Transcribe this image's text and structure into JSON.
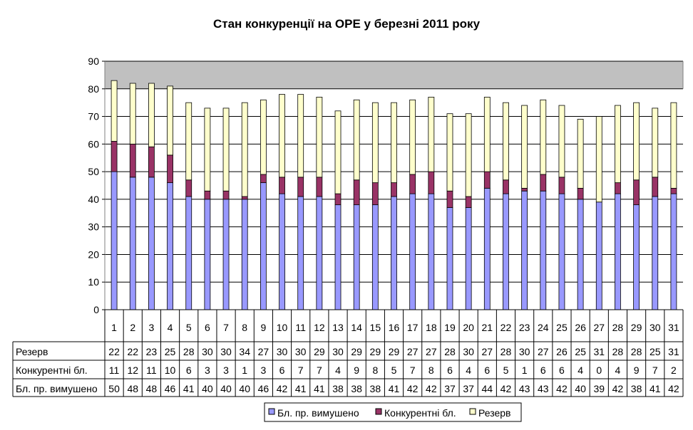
{
  "chart_data": {
    "type": "bar",
    "stacked": true,
    "title": "Стан конкуренції на ОРЕ  у березні 2011 року",
    "categories": [
      "1",
      "2",
      "3",
      "4",
      "5",
      "6",
      "7",
      "8",
      "9",
      "10",
      "11",
      "12",
      "13",
      "14",
      "15",
      "16",
      "17",
      "18",
      "19",
      "20",
      "21",
      "22",
      "23",
      "24",
      "25",
      "26",
      "27",
      "28",
      "29",
      "30",
      "31"
    ],
    "ylim": [
      0,
      90
    ],
    "yticks": [
      "0",
      "10",
      "20",
      "30",
      "40",
      "50",
      "60",
      "70",
      "80",
      "90"
    ],
    "grid": true,
    "series": [
      {
        "name": "Бл. пр. вимушено",
        "color": "#9999ff",
        "values": [
          50,
          48,
          48,
          46,
          41,
          40,
          40,
          40,
          46,
          42,
          41,
          41,
          38,
          38,
          38,
          41,
          42,
          42,
          37,
          37,
          44,
          42,
          43,
          43,
          42,
          40,
          39,
          42,
          38,
          41,
          42
        ]
      },
      {
        "name": "Конкурентні бл.",
        "color": "#993366",
        "values": [
          11,
          12,
          11,
          10,
          6,
          3,
          3,
          1,
          3,
          6,
          7,
          7,
          4,
          9,
          8,
          5,
          7,
          8,
          6,
          4,
          6,
          5,
          1,
          6,
          6,
          4,
          0,
          4,
          9,
          7,
          2
        ]
      },
      {
        "name": "Резерв",
        "color": "#ffffcc",
        "values": [
          22,
          22,
          23,
          25,
          28,
          30,
          30,
          34,
          27,
          30,
          30,
          29,
          30,
          29,
          29,
          29,
          27,
          27,
          28,
          30,
          27,
          28,
          30,
          27,
          26,
          25,
          31,
          28,
          28,
          25,
          31
        ]
      }
    ],
    "table_rows": [
      {
        "label": "Резерв",
        "values": [
          "22",
          "22",
          "23",
          "25",
          "28",
          "30",
          "30",
          "34",
          "27",
          "30",
          "30",
          "29",
          "30",
          "29",
          "29",
          "29",
          "27",
          "27",
          "28",
          "30",
          "27",
          "28",
          "30",
          "27",
          "26",
          "25",
          "31",
          "28",
          "28",
          "25",
          "31"
        ]
      },
      {
        "label": "Конкурентні бл.",
        "values": [
          "11",
          "12",
          "11",
          "10",
          "6",
          "3",
          "3",
          "1",
          "3",
          "6",
          "7",
          "7",
          "4",
          "9",
          "8",
          "5",
          "7",
          "8",
          "6",
          "4",
          "6",
          "5",
          "1",
          "6",
          "6",
          "4",
          "0",
          "4",
          "9",
          "7",
          "2"
        ]
      },
      {
        "label": "Бл. пр. вимушено",
        "values": [
          "50",
          "48",
          "48",
          "46",
          "41",
          "40",
          "40",
          "40",
          "46",
          "42",
          "41",
          "41",
          "38",
          "38",
          "38",
          "41",
          "42",
          "42",
          "37",
          "37",
          "44",
          "42",
          "43",
          "43",
          "42",
          "40",
          "39",
          "42",
          "38",
          "41",
          "42"
        ]
      }
    ],
    "legend": [
      "Бл. пр. вимушено",
      "Конкурентні бл.",
      "Резерв"
    ],
    "legend_position": "bottom"
  }
}
